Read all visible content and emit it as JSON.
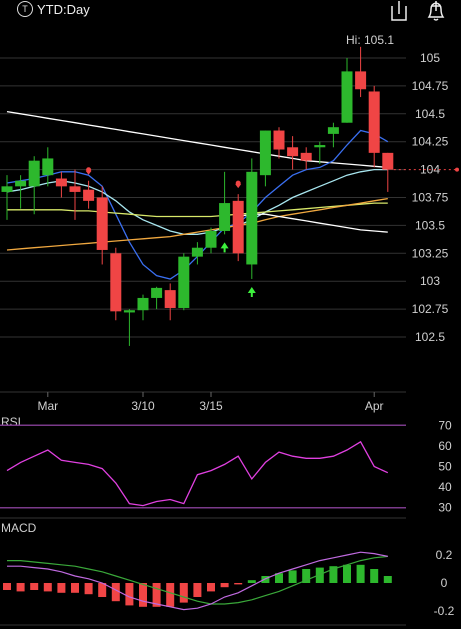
{
  "header": {
    "ticker_label": "YTD:Day",
    "ticker_icon": "t-circle-icon",
    "share_icon": "share-icon",
    "alert_icon": "bell-plus-icon"
  },
  "colors": {
    "up": "#2db82d",
    "down": "#f04545",
    "bg": "#000000",
    "text": "#d0d0d0",
    "grid": "#333333",
    "ma_white": "#ffffff",
    "ma_blue": "#3a6ff0",
    "ma_cyan": "#a8e6ef",
    "ma_yellow": "#d8e86a",
    "ma_orange": "#f0a840",
    "rsi_line": "#e040e0",
    "rsi_band": "#7a3a8a",
    "macd_line": "#c06ae0",
    "signal_line": "#3aa83a"
  },
  "chart_data": [
    {
      "type": "candlestick",
      "title": "YTD:Day",
      "high_label": "Hi: 105.1",
      "y_ticks": [
        105,
        104.75,
        104.5,
        104.25,
        104,
        103.75,
        103.5,
        103.25,
        103,
        102.75,
        102.5
      ],
      "y_tick_labels": [
        "105",
        "104.75",
        "104.5",
        "104.25",
        "104",
        "103.75",
        "103.5",
        "103.25",
        "103",
        "102.75",
        "102.5"
      ],
      "ylim": [
        102.25,
        105.25
      ],
      "x_tick_labels": [
        {
          "label": "Mar",
          "index": 3
        },
        {
          "label": "3/10",
          "index": 10
        },
        {
          "label": "3/15",
          "index": 15
        },
        {
          "label": "Apr",
          "index": 27
        }
      ],
      "last_price": 104.0,
      "candles": [
        {
          "o": 103.8,
          "h": 103.95,
          "l": 103.55,
          "c": 103.85
        },
        {
          "o": 103.85,
          "h": 103.95,
          "l": 103.65,
          "c": 103.9
        },
        {
          "o": 103.85,
          "h": 104.12,
          "l": 103.6,
          "c": 104.08
        },
        {
          "o": 103.95,
          "h": 104.2,
          "l": 103.85,
          "c": 104.1
        },
        {
          "o": 103.92,
          "h": 103.98,
          "l": 103.75,
          "c": 103.85
        },
        {
          "o": 103.85,
          "h": 104.0,
          "l": 103.55,
          "c": 103.8
        },
        {
          "o": 103.82,
          "h": 103.9,
          "l": 103.65,
          "c": 103.72
        },
        {
          "o": 103.75,
          "h": 103.85,
          "l": 103.15,
          "c": 103.28
        },
        {
          "o": 103.25,
          "h": 103.3,
          "l": 102.65,
          "c": 102.73
        },
        {
          "o": 102.72,
          "h": 102.75,
          "l": 102.42,
          "c": 102.74
        },
        {
          "o": 102.74,
          "h": 102.88,
          "l": 102.65,
          "c": 102.85
        },
        {
          "o": 102.85,
          "h": 102.95,
          "l": 102.75,
          "c": 102.94
        },
        {
          "o": 102.92,
          "h": 102.98,
          "l": 102.65,
          "c": 102.76
        },
        {
          "o": 102.76,
          "h": 103.25,
          "l": 102.74,
          "c": 103.22
        },
        {
          "o": 103.22,
          "h": 103.35,
          "l": 103.15,
          "c": 103.3
        },
        {
          "o": 103.3,
          "h": 103.48,
          "l": 103.25,
          "c": 103.45
        },
        {
          "o": 103.45,
          "h": 103.98,
          "l": 103.42,
          "c": 103.7
        },
        {
          "o": 103.72,
          "h": 103.78,
          "l": 103.18,
          "c": 103.25
        },
        {
          "o": 103.15,
          "h": 104.1,
          "l": 103.02,
          "c": 103.98
        },
        {
          "o": 103.95,
          "h": 104.35,
          "l": 103.85,
          "c": 104.35
        },
        {
          "o": 104.35,
          "h": 104.38,
          "l": 104.1,
          "c": 104.18
        },
        {
          "o": 104.2,
          "h": 104.3,
          "l": 104.0,
          "c": 104.12
        },
        {
          "o": 104.15,
          "h": 104.2,
          "l": 104.0,
          "c": 104.08
        },
        {
          "o": 104.2,
          "h": 104.25,
          "l": 104.05,
          "c": 104.22
        },
        {
          "o": 104.32,
          "h": 104.42,
          "l": 104.2,
          "c": 104.38
        },
        {
          "o": 104.42,
          "h": 105.0,
          "l": 104.42,
          "c": 104.88
        },
        {
          "o": 104.88,
          "h": 105.1,
          "l": 104.65,
          "c": 104.72
        },
        {
          "o": 104.7,
          "h": 104.75,
          "l": 104.02,
          "c": 104.15
        },
        {
          "o": 104.15,
          "h": 104.15,
          "l": 103.8,
          "c": 104.0
        }
      ],
      "moving_averages": [
        {
          "color_key": "ma_white",
          "values": [
            104.52,
            104.5,
            104.48,
            104.46,
            104.44,
            104.42,
            104.4,
            104.38,
            104.36,
            104.34,
            104.32,
            104.3,
            104.28,
            104.26,
            104.24,
            104.22,
            104.2,
            104.18,
            104.16,
            104.14,
            104.12,
            104.1,
            104.08,
            104.07,
            104.06,
            104.05,
            104.04,
            104.03,
            104.02
          ]
        },
        {
          "color_key": "ma_blue",
          "values": [
            103.88,
            103.9,
            103.92,
            103.95,
            103.98,
            103.98,
            103.95,
            103.85,
            103.6,
            103.35,
            103.15,
            103.05,
            103.02,
            103.1,
            103.22,
            103.35,
            103.48,
            103.52,
            103.62,
            103.75,
            103.85,
            103.95,
            104.0,
            104.02,
            104.08,
            104.22,
            104.35,
            104.32,
            104.25
          ]
        },
        {
          "color_key": "ma_cyan",
          "values": [
            103.8,
            103.82,
            103.85,
            103.88,
            103.9,
            103.88,
            103.85,
            103.8,
            103.72,
            103.62,
            103.55,
            103.5,
            103.45,
            103.42,
            103.42,
            103.44,
            103.48,
            103.5,
            103.55,
            103.62,
            103.68,
            103.75,
            103.8,
            103.85,
            103.9,
            103.95,
            103.98,
            104.0,
            104.0
          ]
        },
        {
          "color_key": "ma_yellow",
          "values": [
            103.64,
            103.64,
            103.64,
            103.64,
            103.64,
            103.63,
            103.63,
            103.62,
            103.61,
            103.6,
            103.59,
            103.58,
            103.58,
            103.58,
            103.58,
            103.58,
            103.59,
            103.6,
            103.61,
            103.62,
            103.63,
            103.64,
            103.65,
            103.66,
            103.67,
            103.68,
            103.69,
            103.7,
            103.7
          ]
        },
        {
          "color_key": "ma_orange",
          "values": [
            103.28,
            103.29,
            103.3,
            103.31,
            103.32,
            103.33,
            103.34,
            103.35,
            103.36,
            103.37,
            103.38,
            103.39,
            103.4,
            103.42,
            103.44,
            103.46,
            103.48,
            103.5,
            103.52,
            103.55,
            103.58,
            103.6,
            103.62,
            103.64,
            103.66,
            103.68,
            103.7,
            103.72,
            103.74
          ]
        },
        {
          "color_key": "ma_white",
          "values": [
            null,
            null,
            null,
            null,
            null,
            null,
            null,
            null,
            null,
            null,
            null,
            null,
            null,
            null,
            null,
            null,
            null,
            103.58,
            103.6,
            103.6,
            103.58,
            103.56,
            103.54,
            103.52,
            103.5,
            103.48,
            103.46,
            103.45,
            103.44
          ]
        }
      ],
      "signals": [
        {
          "index": 6,
          "kind": "sell"
        },
        {
          "index": 16,
          "kind": "buy"
        },
        {
          "index": 17,
          "kind": "sell"
        },
        {
          "index": 18,
          "kind": "buy"
        }
      ]
    },
    {
      "type": "line",
      "title": "RSI",
      "y_ticks": [
        70,
        60,
        50,
        40,
        30
      ],
      "y_tick_labels": [
        "70",
        "60",
        "50",
        "40",
        "30"
      ],
      "ylim": [
        25,
        75
      ],
      "bands": [
        70,
        30
      ],
      "values": [
        48,
        52,
        55,
        58,
        53,
        52,
        51,
        49,
        42,
        32,
        31,
        33,
        34,
        32,
        46,
        48,
        51,
        55,
        44,
        52,
        57,
        55,
        54,
        54,
        55,
        58,
        62,
        50,
        47
      ]
    },
    {
      "type": "bar",
      "title": "MACD",
      "y_ticks": [
        0.2,
        0,
        -0.2
      ],
      "y_tick_labels": [
        "0.2",
        "0",
        "-0.2"
      ],
      "ylim": [
        -0.3,
        0.3
      ],
      "histogram": [
        -0.05,
        -0.06,
        -0.05,
        -0.06,
        -0.07,
        -0.07,
        -0.08,
        -0.1,
        -0.13,
        -0.16,
        -0.17,
        -0.17,
        -0.17,
        -0.14,
        -0.1,
        -0.06,
        -0.03,
        -0.01,
        0.02,
        0.05,
        0.07,
        0.09,
        0.1,
        0.11,
        0.12,
        0.13,
        0.13,
        0.1,
        0.05
      ],
      "macd_line": [
        0.12,
        0.12,
        0.11,
        0.1,
        0.08,
        0.05,
        0.03,
        0.0,
        -0.05,
        -0.1,
        -0.13,
        -0.15,
        -0.17,
        -0.19,
        -0.18,
        -0.15,
        -0.1,
        -0.07,
        -0.02,
        0.03,
        0.07,
        0.1,
        0.13,
        0.16,
        0.18,
        0.2,
        0.22,
        0.21,
        0.19
      ],
      "signal_line": [
        0.16,
        0.16,
        0.15,
        0.14,
        0.13,
        0.12,
        0.1,
        0.08,
        0.05,
        0.02,
        -0.01,
        -0.04,
        -0.07,
        -0.1,
        -0.13,
        -0.15,
        -0.15,
        -0.14,
        -0.12,
        -0.09,
        -0.06,
        -0.02,
        0.02,
        0.06,
        0.1,
        0.13,
        0.16,
        0.18,
        0.19
      ]
    }
  ]
}
